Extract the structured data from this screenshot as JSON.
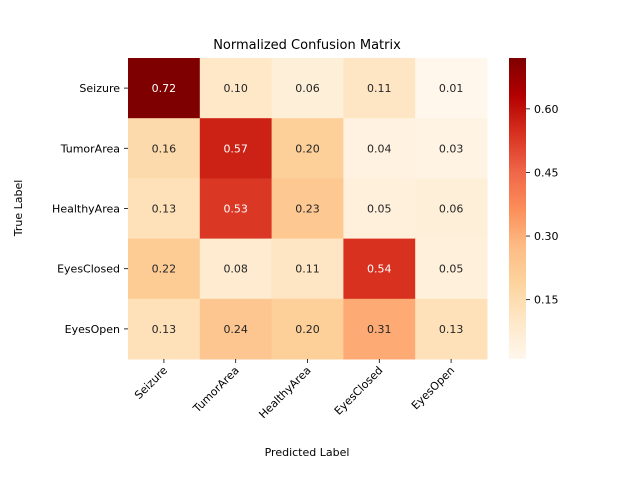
{
  "chart_data": {
    "type": "heatmap",
    "title": "Normalized Confusion Matrix",
    "xlabel": "Predicted Label",
    "ylabel": "True Label",
    "x_categories": [
      "Seizure",
      "TumorArea",
      "HealthyArea",
      "EyesClosed",
      "EyesOpen"
    ],
    "y_categories": [
      "Seizure",
      "TumorArea",
      "HealthyArea",
      "EyesClosed",
      "EyesOpen"
    ],
    "values": [
      [
        0.72,
        0.1,
        0.06,
        0.11,
        0.01
      ],
      [
        0.16,
        0.57,
        0.2,
        0.04,
        0.03
      ],
      [
        0.13,
        0.53,
        0.23,
        0.05,
        0.06
      ],
      [
        0.22,
        0.08,
        0.11,
        0.54,
        0.05
      ],
      [
        0.13,
        0.24,
        0.2,
        0.31,
        0.13
      ]
    ],
    "value_labels": [
      [
        "0.72",
        "0.10",
        "0.06",
        "0.11",
        "0.01"
      ],
      [
        "0.16",
        "0.57",
        "0.20",
        "0.04",
        "0.03"
      ],
      [
        "0.13",
        "0.53",
        "0.23",
        "0.05",
        "0.06"
      ],
      [
        "0.22",
        "0.08",
        "0.11",
        "0.54",
        "0.05"
      ],
      [
        "0.13",
        "0.24",
        "0.20",
        "0.31",
        "0.13"
      ]
    ],
    "colormap": "OrRd",
    "colorbar": {
      "range": [
        0.01,
        0.72
      ],
      "ticks": [
        0.15,
        0.3,
        0.45,
        0.6
      ],
      "tick_labels": [
        "0.15",
        "0.30",
        "0.45",
        "0.60"
      ]
    },
    "x_tick_rotation_deg": 45
  }
}
